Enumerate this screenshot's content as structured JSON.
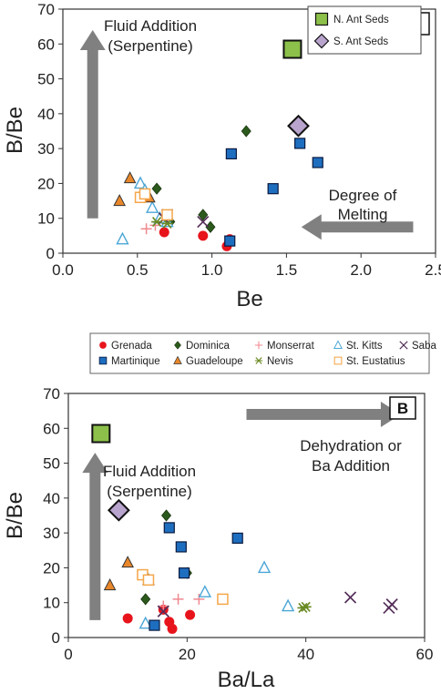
{
  "colors": {
    "grenada": "#e8141c",
    "dominica": "#2b5a1c",
    "monserrat": "#f08890",
    "st_kitts": "#4aa6d6",
    "saba": "#55305a",
    "martinique": "#1e6ec0",
    "guadeloupe": "#e8872a",
    "nevis": "#6a8a24",
    "st_eustatius": "#f5a64a",
    "n_ant_seds": "#8cc04a",
    "s_ant_seds": "#b8a4cc",
    "arrow": "#808080"
  },
  "legend": {
    "items": [
      {
        "key": "grenada",
        "label": "Grenada",
        "marker": "circle"
      },
      {
        "key": "dominica",
        "label": "Dominica",
        "marker": "diamond"
      },
      {
        "key": "monserrat",
        "label": "Monserrat",
        "marker": "plus"
      },
      {
        "key": "st_kitts",
        "label": "St. Kitts",
        "marker": "open-triangle"
      },
      {
        "key": "saba",
        "label": "Saba",
        "marker": "x"
      },
      {
        "key": "martinique",
        "label": "Martinique",
        "marker": "square"
      },
      {
        "key": "guadeloupe",
        "label": "Guadeloupe",
        "marker": "triangle"
      },
      {
        "key": "nevis",
        "label": "Nevis",
        "marker": "asterisk"
      },
      {
        "key": "st_eustatius",
        "label": "St. Eustatius",
        "marker": "open-square"
      }
    ]
  },
  "chart_data": [
    {
      "panel": "A",
      "type": "scatter",
      "xlabel": "Be",
      "ylabel": "B/Be",
      "xlim": [
        0,
        2.5
      ],
      "ylim": [
        0,
        70
      ],
      "xticks": [
        "0.0",
        "0.5",
        "1.0",
        "1.5",
        "2.0",
        "2.5"
      ],
      "yticks": [
        "0",
        "10",
        "20",
        "30",
        "40",
        "50",
        "60",
        "70"
      ],
      "inset_legend": [
        {
          "key": "n_ant_seds",
          "label": "N. Ant Seds"
        },
        {
          "key": "s_ant_seds",
          "label": "S. Ant Seds"
        }
      ],
      "annotations": [
        {
          "lines": [
            "Fluid Addition",
            "(Serpentine)"
          ]
        },
        {
          "lines": [
            "Degree of",
            "Melting"
          ]
        }
      ],
      "arrows": [
        {
          "direction": "up",
          "from": [
            0.2,
            10
          ],
          "to": [
            0.2,
            64
          ]
        },
        {
          "direction": "left",
          "from": [
            2.35,
            7.5
          ],
          "to": [
            1.6,
            7.5
          ]
        }
      ],
      "series": [
        {
          "name": "Grenada",
          "key": "grenada",
          "x": [
            0.68,
            0.94,
            1.1,
            1.12
          ],
          "y": [
            6,
            5,
            2,
            4
          ]
        },
        {
          "name": "Dominica",
          "key": "dominica",
          "x": [
            0.63,
            0.72,
            0.94,
            0.99,
            1.23
          ],
          "y": [
            18.5,
            9,
            11,
            7.5,
            35
          ]
        },
        {
          "name": "Monserrat",
          "key": "monserrat",
          "x": [
            0.56,
            0.62,
            0.68
          ],
          "y": [
            7,
            8,
            9
          ]
        },
        {
          "name": "St. Kitts",
          "key": "st_kitts",
          "x": [
            0.4,
            0.52,
            0.55,
            0.6,
            0.65,
            0.7
          ],
          "y": [
            4,
            20,
            18,
            13,
            10,
            9
          ]
        },
        {
          "name": "Saba",
          "key": "saba",
          "x": [
            0.68,
            0.7,
            0.94
          ],
          "y": [
            10,
            11,
            9
          ]
        },
        {
          "name": "Martinique",
          "key": "martinique",
          "x": [
            1.12,
            1.13,
            1.41,
            1.59,
            1.71
          ],
          "y": [
            3.5,
            28.5,
            18.5,
            31.5,
            26
          ]
        },
        {
          "name": "Guadeloupe",
          "key": "guadeloupe",
          "x": [
            0.38,
            0.45,
            0.58
          ],
          "y": [
            15,
            21.5,
            16
          ]
        },
        {
          "name": "Nevis",
          "key": "nevis",
          "x": [
            0.63,
            0.7
          ],
          "y": [
            9,
            8.5
          ]
        },
        {
          "name": "St. Eustatius",
          "key": "st_eustatius",
          "x": [
            0.52,
            0.55,
            0.7
          ],
          "y": [
            16,
            17,
            11
          ]
        },
        {
          "name": "N. Ant Seds",
          "key": "n_ant_seds",
          "x": [
            1.54
          ],
          "y": [
            58.5
          ]
        },
        {
          "name": "S. Ant Seds",
          "key": "s_ant_seds",
          "x": [
            1.58
          ],
          "y": [
            36.5
          ]
        }
      ]
    },
    {
      "panel": "B",
      "type": "scatter",
      "xlabel": "Ba/La",
      "ylabel": "B/Be",
      "xlim": [
        0,
        60
      ],
      "ylim": [
        0,
        70
      ],
      "xticks": [
        "0",
        "20",
        "40",
        "60"
      ],
      "yticks": [
        "0",
        "10",
        "20",
        "30",
        "40",
        "50",
        "60",
        "70"
      ],
      "annotations": [
        {
          "lines": [
            "Fluid Addition",
            "(Serpentine)"
          ]
        },
        {
          "lines": [
            "Dehydration or",
            "Ba Addition"
          ]
        }
      ],
      "arrows": [
        {
          "direction": "up",
          "from": [
            4.5,
            5
          ],
          "to": [
            4.5,
            53
          ]
        },
        {
          "direction": "right",
          "from": [
            30,
            64
          ],
          "to": [
            56,
            64
          ]
        }
      ],
      "series": [
        {
          "name": "Grenada",
          "key": "grenada",
          "x": [
            10,
            16,
            17,
            17.5,
            20.5
          ],
          "y": [
            5.5,
            8,
            4.5,
            2.5,
            6.5
          ]
        },
        {
          "name": "Dominica",
          "key": "dominica",
          "x": [
            13,
            16.5,
            20
          ],
          "y": [
            11,
            35,
            18.5
          ]
        },
        {
          "name": "Monserrat",
          "key": "monserrat",
          "x": [
            16,
            18.5,
            22
          ],
          "y": [
            9,
            11,
            11
          ]
        },
        {
          "name": "St. Kitts",
          "key": "st_kitts",
          "x": [
            13,
            23,
            33,
            37
          ],
          "y": [
            4,
            13,
            20,
            9
          ]
        },
        {
          "name": "Saba",
          "key": "saba",
          "x": [
            16,
            47.5,
            54,
            54.5
          ],
          "y": [
            7.5,
            11.5,
            8.5,
            9.5
          ]
        },
        {
          "name": "Martinique",
          "key": "martinique",
          "x": [
            14.5,
            17,
            19,
            19.5,
            28.5
          ],
          "y": [
            3.5,
            31.5,
            26,
            18.5,
            28.5
          ]
        },
        {
          "name": "Guadeloupe",
          "key": "guadeloupe",
          "x": [
            7,
            10,
            13.5
          ],
          "y": [
            15,
            21.5,
            16.5
          ]
        },
        {
          "name": "Nevis",
          "key": "nevis",
          "x": [
            39.5,
            40
          ],
          "y": [
            8.5,
            8.8
          ]
        },
        {
          "name": "St. Eustatius",
          "key": "st_eustatius",
          "x": [
            12.5,
            13.5,
            26
          ],
          "y": [
            18,
            16.5,
            11
          ]
        },
        {
          "name": "N. Ant Seds",
          "key": "n_ant_seds",
          "x": [
            5.5
          ],
          "y": [
            58.5
          ]
        },
        {
          "name": "S. Ant Seds",
          "key": "s_ant_seds",
          "x": [
            8.5
          ],
          "y": [
            36.5
          ]
        }
      ]
    }
  ]
}
